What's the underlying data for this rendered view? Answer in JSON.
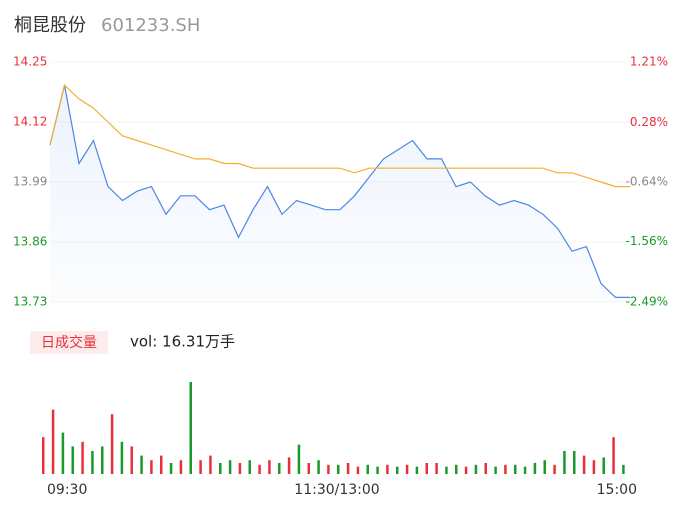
{
  "chart_data": [
    {
      "type": "line",
      "title": "桐昆股份",
      "subtitle": "601233.SH",
      "x": [
        0,
        6,
        12,
        18,
        24,
        30,
        36,
        42,
        48,
        54,
        60,
        66,
        72,
        78,
        84,
        90,
        96,
        102,
        108,
        114,
        120,
        126,
        132,
        138,
        144,
        150,
        156,
        162,
        168,
        174,
        180,
        186,
        192,
        198,
        204,
        210,
        216,
        222,
        228,
        234,
        240
      ],
      "series": [
        {
          "color": "#4a86e8",
          "values": [
            14.07,
            14.2,
            14.03,
            14.08,
            13.98,
            13.95,
            13.97,
            13.98,
            13.92,
            13.96,
            13.96,
            13.93,
            13.94,
            13.87,
            13.93,
            13.98,
            13.92,
            13.95,
            13.94,
            13.93,
            13.93,
            13.96,
            14.0,
            14.04,
            14.06,
            14.08,
            14.04,
            14.04,
            13.98,
            13.99,
            13.96,
            13.94,
            13.95,
            13.94,
            13.92,
            13.89,
            13.84,
            13.85,
            13.77,
            13.74,
            13.74
          ]
        },
        {
          "color": "#f0b030",
          "values": [
            14.07,
            14.2,
            14.17,
            14.15,
            14.12,
            14.09,
            14.08,
            14.07,
            14.06,
            14.05,
            14.04,
            14.04,
            14.03,
            14.03,
            14.02,
            14.02,
            14.02,
            14.02,
            14.02,
            14.02,
            14.02,
            14.01,
            14.02,
            14.02,
            14.02,
            14.02,
            14.02,
            14.02,
            14.02,
            14.02,
            14.02,
            14.02,
            14.02,
            14.02,
            14.02,
            14.01,
            14.01,
            14.0,
            13.99,
            13.98,
            13.98
          ]
        }
      ],
      "xlim": [
        0,
        240
      ],
      "ylim": [
        13.73,
        14.25
      ],
      "yticks": [
        14.25,
        14.12,
        13.99,
        13.86,
        13.73
      ],
      "y2lim": [
        -2.49,
        1.21
      ],
      "y2ticks": [
        {
          "value": 1.21,
          "label": "1.21%"
        },
        {
          "value": 0.28,
          "label": "0.28%"
        },
        {
          "value": -0.64,
          "label": "-0.64%"
        },
        {
          "value": -1.56,
          "label": "-1.56%"
        },
        {
          "value": -2.49,
          "label": "-2.49%"
        }
      ],
      "tick_colors": [
        "#e8303a",
        "#e8303a",
        "#888888",
        "#1a9a2a",
        "#1a9a2a"
      ]
    },
    {
      "type": "bar",
      "title": "日成交量",
      "subtitle": "vol: 16.31万手",
      "x": [
        0,
        4,
        8,
        12,
        16,
        20,
        24,
        28,
        32,
        36,
        40,
        44,
        48,
        52,
        56,
        60,
        64,
        68,
        72,
        76,
        80,
        84,
        88,
        92,
        96,
        100,
        104,
        108,
        112,
        116,
        120,
        124,
        128,
        132,
        136,
        140,
        144,
        148,
        152,
        156,
        160,
        164,
        168,
        172,
        176,
        180,
        184,
        188,
        192,
        196,
        200,
        204,
        208,
        212,
        216,
        220,
        224,
        228,
        232,
        236
      ],
      "values": [
        40,
        70,
        45,
        30,
        35,
        25,
        30,
        65,
        35,
        30,
        20,
        15,
        20,
        12,
        15,
        100,
        15,
        20,
        12,
        15,
        12,
        15,
        10,
        15,
        12,
        18,
        32,
        12,
        15,
        10,
        10,
        12,
        8,
        10,
        8,
        10,
        8,
        10,
        8,
        12,
        12,
        8,
        10,
        8,
        10,
        12,
        8,
        10,
        10,
        8,
        12,
        15,
        10,
        25,
        25,
        20,
        15,
        18,
        40,
        10
      ],
      "colors": [
        "#e8303a",
        "#e8303a",
        "#1a9a2a",
        "#1a9a2a",
        "#e8303a",
        "#1a9a2a",
        "#1a9a2a",
        "#e8303a",
        "#1a9a2a",
        "#e8303a",
        "#1a9a2a",
        "#e8303a",
        "#e8303a",
        "#1a9a2a",
        "#e8303a",
        "#1a9a2a",
        "#e8303a",
        "#e8303a",
        "#1a9a2a",
        "#1a9a2a",
        "#e8303a",
        "#1a9a2a",
        "#e8303a",
        "#e8303a",
        "#1a9a2a",
        "#e8303a",
        "#1a9a2a",
        "#e8303a",
        "#1a9a2a",
        "#e8303a",
        "#1a9a2a",
        "#e8303a",
        "#e8303a",
        "#1a9a2a",
        "#1a9a2a",
        "#e8303a",
        "#1a9a2a",
        "#e8303a",
        "#1a9a2a",
        "#e8303a",
        "#e8303a",
        "#1a9a2a",
        "#1a9a2a",
        "#e8303a",
        "#1a9a2a",
        "#e8303a",
        "#1a9a2a",
        "#e8303a",
        "#1a9a2a",
        "#1a9a2a",
        "#1a9a2a",
        "#1a9a2a",
        "#e8303a",
        "#1a9a2a",
        "#1a9a2a",
        "#e8303a",
        "#e8303a",
        "#1a9a2a",
        "#e8303a",
        "#1a9a2a"
      ],
      "xlim": [
        0,
        240
      ],
      "ylim": [
        0,
        100
      ],
      "xticks": [
        {
          "value": 0,
          "label": "09:30"
        },
        {
          "value": 120,
          "label": "11:30/13:00"
        },
        {
          "value": 240,
          "label": "15:00"
        }
      ]
    }
  ]
}
